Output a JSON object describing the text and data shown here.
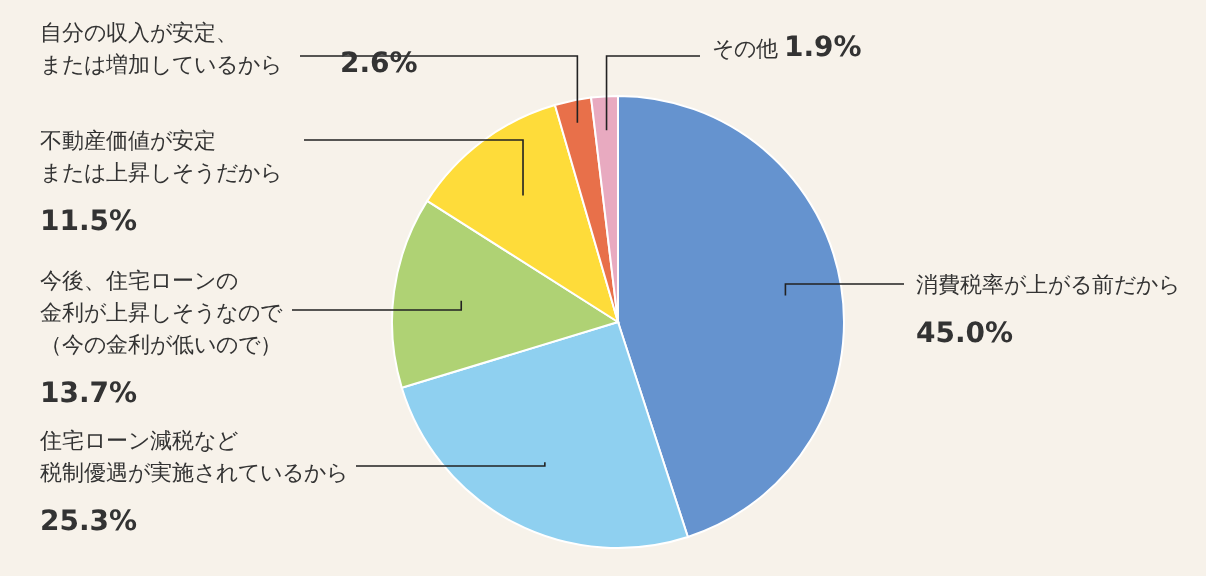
{
  "chart_data": {
    "type": "pie",
    "categories": [
      "消費税率が上がる前だから",
      "住宅ローン減税など税制優遇が実施されているから",
      "今後、住宅ローンの金利が上昇しそうなので（今の金利が低いので）",
      "不動産価値が安定または上昇しそうだから",
      "自分の収入が安定、または増加しているから",
      "その他"
    ],
    "values": [
      45.0,
      25.3,
      13.7,
      11.5,
      2.6,
      1.9
    ],
    "colors": [
      "#6593cf",
      "#8fd0f0",
      "#afd274",
      "#fedc3a",
      "#e8704a",
      "#e8aac0"
    ],
    "value_labels": [
      "45.0%",
      "25.3%",
      "13.7%",
      "11.5%",
      "2.6%",
      "1.9%"
    ]
  }
}
